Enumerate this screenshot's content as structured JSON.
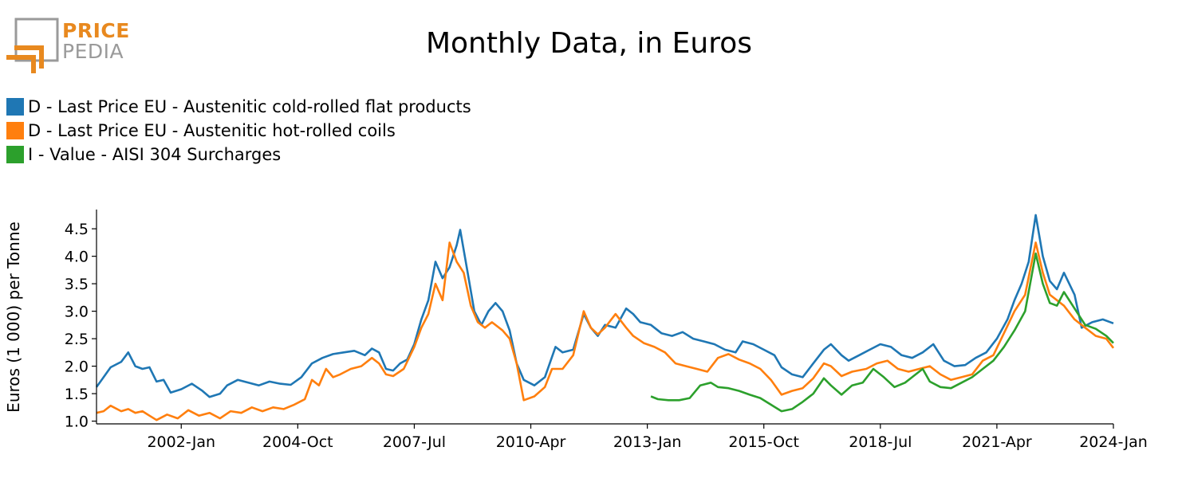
{
  "logo": {
    "line1": "PRICE",
    "line2": "PEDIA",
    "accent_color": "#e8891f",
    "gray_color": "#9a9a9a"
  },
  "chart_data": {
    "type": "line",
    "title": "Monthly Data, in Euros",
    "ylabel": "Euros (1 000) per Tonne",
    "xlabel": "",
    "ylim": [
      0.95,
      4.85
    ],
    "yticks": [
      1.0,
      1.5,
      2.0,
      2.5,
      3.0,
      3.5,
      4.0,
      4.5
    ],
    "ytick_labels": [
      "1.0",
      "1.5",
      "2.0",
      "2.5",
      "3.0",
      "3.5",
      "4.0",
      "4.5"
    ],
    "xlim": [
      "2000-01",
      "2024-01"
    ],
    "xticks": [
      "2002-01",
      "2004-10",
      "2007-07",
      "2010-04",
      "2013-01",
      "2015-10",
      "2018-07",
      "2021-04",
      "2024-01"
    ],
    "xtick_labels": [
      "2002-Jan",
      "2004-Oct",
      "2007-Jul",
      "2010-Apr",
      "2013-Jan",
      "2015-Oct",
      "2018-Jul",
      "2021-Apr",
      "2024-Jan"
    ],
    "legend_position": "top-left",
    "grid": false,
    "series": [
      {
        "name": "D - Last Price EU - Austenitic cold-rolled flat products",
        "color": "#1f77b4",
        "points": [
          [
            "2000-01",
            1.62
          ],
          [
            "2000-03",
            1.8
          ],
          [
            "2000-05",
            1.98
          ],
          [
            "2000-08",
            2.08
          ],
          [
            "2000-10",
            2.25
          ],
          [
            "2000-12",
            2.0
          ],
          [
            "2001-02",
            1.95
          ],
          [
            "2001-04",
            1.98
          ],
          [
            "2001-06",
            1.72
          ],
          [
            "2001-08",
            1.75
          ],
          [
            "2001-10",
            1.52
          ],
          [
            "2002-01",
            1.58
          ],
          [
            "2002-04",
            1.68
          ],
          [
            "2002-07",
            1.55
          ],
          [
            "2002-09",
            1.44
          ],
          [
            "2002-12",
            1.5
          ],
          [
            "2003-02",
            1.65
          ],
          [
            "2003-05",
            1.75
          ],
          [
            "2003-08",
            1.7
          ],
          [
            "2003-11",
            1.65
          ],
          [
            "2004-02",
            1.72
          ],
          [
            "2004-05",
            1.68
          ],
          [
            "2004-08",
            1.66
          ],
          [
            "2004-11",
            1.8
          ],
          [
            "2005-02",
            2.05
          ],
          [
            "2005-05",
            2.15
          ],
          [
            "2005-08",
            2.22
          ],
          [
            "2005-11",
            2.25
          ],
          [
            "2006-02",
            2.28
          ],
          [
            "2006-05",
            2.2
          ],
          [
            "2006-07",
            2.32
          ],
          [
            "2006-09",
            2.25
          ],
          [
            "2006-11",
            1.95
          ],
          [
            "2007-01",
            1.92
          ],
          [
            "2007-03",
            2.05
          ],
          [
            "2007-05",
            2.12
          ],
          [
            "2007-07",
            2.4
          ],
          [
            "2007-09",
            2.85
          ],
          [
            "2007-11",
            3.2
          ],
          [
            "2008-01",
            3.9
          ],
          [
            "2008-03",
            3.6
          ],
          [
            "2008-05",
            3.8
          ],
          [
            "2008-07",
            4.2
          ],
          [
            "2008-08",
            4.48
          ],
          [
            "2008-10",
            3.75
          ],
          [
            "2008-12",
            3.0
          ],
          [
            "2009-02",
            2.75
          ],
          [
            "2009-04",
            3.0
          ],
          [
            "2009-06",
            3.15
          ],
          [
            "2009-08",
            3.0
          ],
          [
            "2009-10",
            2.65
          ],
          [
            "2009-12",
            2.05
          ],
          [
            "2010-02",
            1.75
          ],
          [
            "2010-05",
            1.65
          ],
          [
            "2010-08",
            1.8
          ],
          [
            "2010-11",
            2.35
          ],
          [
            "2011-01",
            2.25
          ],
          [
            "2011-04",
            2.3
          ],
          [
            "2011-07",
            2.95
          ],
          [
            "2011-09",
            2.7
          ],
          [
            "2011-11",
            2.55
          ],
          [
            "2012-01",
            2.75
          ],
          [
            "2012-04",
            2.7
          ],
          [
            "2012-07",
            3.05
          ],
          [
            "2012-09",
            2.95
          ],
          [
            "2012-11",
            2.8
          ],
          [
            "2013-02",
            2.75
          ],
          [
            "2013-05",
            2.6
          ],
          [
            "2013-08",
            2.55
          ],
          [
            "2013-11",
            2.62
          ],
          [
            "2014-02",
            2.5
          ],
          [
            "2014-05",
            2.45
          ],
          [
            "2014-08",
            2.4
          ],
          [
            "2014-11",
            2.3
          ],
          [
            "2015-02",
            2.25
          ],
          [
            "2015-04",
            2.45
          ],
          [
            "2015-07",
            2.4
          ],
          [
            "2015-10",
            2.3
          ],
          [
            "2016-01",
            2.2
          ],
          [
            "2016-03",
            1.98
          ],
          [
            "2016-06",
            1.85
          ],
          [
            "2016-09",
            1.8
          ],
          [
            "2016-12",
            2.05
          ],
          [
            "2017-03",
            2.3
          ],
          [
            "2017-05",
            2.4
          ],
          [
            "2017-08",
            2.2
          ],
          [
            "2017-10",
            2.1
          ],
          [
            "2018-01",
            2.2
          ],
          [
            "2018-04",
            2.3
          ],
          [
            "2018-07",
            2.4
          ],
          [
            "2018-10",
            2.35
          ],
          [
            "2019-01",
            2.2
          ],
          [
            "2019-04",
            2.15
          ],
          [
            "2019-07",
            2.25
          ],
          [
            "2019-10",
            2.4
          ],
          [
            "2020-01",
            2.1
          ],
          [
            "2020-04",
            2.0
          ],
          [
            "2020-07",
            2.02
          ],
          [
            "2020-10",
            2.15
          ],
          [
            "2021-01",
            2.25
          ],
          [
            "2021-04",
            2.5
          ],
          [
            "2021-07",
            2.85
          ],
          [
            "2021-09",
            3.2
          ],
          [
            "2021-11",
            3.5
          ],
          [
            "2022-01",
            3.9
          ],
          [
            "2022-03",
            4.75
          ],
          [
            "2022-05",
            4.0
          ],
          [
            "2022-07",
            3.55
          ],
          [
            "2022-09",
            3.4
          ],
          [
            "2022-11",
            3.7
          ],
          [
            "2023-02",
            3.3
          ],
          [
            "2023-04",
            2.7
          ],
          [
            "2023-07",
            2.8
          ],
          [
            "2023-10",
            2.85
          ],
          [
            "2024-01",
            2.78
          ]
        ]
      },
      {
        "name": "D - Last Price EU - Austenitic hot-rolled coils",
        "color": "#ff7f0e",
        "points": [
          [
            "2000-01",
            1.15
          ],
          [
            "2000-03",
            1.18
          ],
          [
            "2000-05",
            1.28
          ],
          [
            "2000-08",
            1.18
          ],
          [
            "2000-10",
            1.22
          ],
          [
            "2000-12",
            1.15
          ],
          [
            "2001-02",
            1.18
          ],
          [
            "2001-04",
            1.1
          ],
          [
            "2001-06",
            1.02
          ],
          [
            "2001-09",
            1.12
          ],
          [
            "2001-12",
            1.05
          ],
          [
            "2002-03",
            1.2
          ],
          [
            "2002-06",
            1.1
          ],
          [
            "2002-09",
            1.15
          ],
          [
            "2002-12",
            1.05
          ],
          [
            "2003-03",
            1.18
          ],
          [
            "2003-06",
            1.15
          ],
          [
            "2003-09",
            1.25
          ],
          [
            "2003-12",
            1.18
          ],
          [
            "2004-03",
            1.25
          ],
          [
            "2004-06",
            1.22
          ],
          [
            "2004-09",
            1.3
          ],
          [
            "2004-12",
            1.4
          ],
          [
            "2005-02",
            1.75
          ],
          [
            "2005-04",
            1.65
          ],
          [
            "2005-06",
            1.95
          ],
          [
            "2005-08",
            1.8
          ],
          [
            "2005-10",
            1.85
          ],
          [
            "2006-01",
            1.95
          ],
          [
            "2006-04",
            2.0
          ],
          [
            "2006-07",
            2.15
          ],
          [
            "2006-09",
            2.05
          ],
          [
            "2006-11",
            1.85
          ],
          [
            "2007-01",
            1.82
          ],
          [
            "2007-04",
            1.95
          ],
          [
            "2007-07",
            2.35
          ],
          [
            "2007-09",
            2.7
          ],
          [
            "2007-11",
            2.95
          ],
          [
            "2008-01",
            3.5
          ],
          [
            "2008-03",
            3.2
          ],
          [
            "2008-05",
            4.25
          ],
          [
            "2008-07",
            3.9
          ],
          [
            "2008-09",
            3.7
          ],
          [
            "2008-11",
            3.1
          ],
          [
            "2009-01",
            2.8
          ],
          [
            "2009-03",
            2.7
          ],
          [
            "2009-05",
            2.8
          ],
          [
            "2009-08",
            2.65
          ],
          [
            "2009-10",
            2.5
          ],
          [
            "2009-12",
            2.05
          ],
          [
            "2010-02",
            1.38
          ],
          [
            "2010-05",
            1.45
          ],
          [
            "2010-08",
            1.62
          ],
          [
            "2010-10",
            1.95
          ],
          [
            "2011-01",
            1.95
          ],
          [
            "2011-04",
            2.2
          ],
          [
            "2011-07",
            3.0
          ],
          [
            "2011-09",
            2.7
          ],
          [
            "2011-11",
            2.58
          ],
          [
            "2012-01",
            2.7
          ],
          [
            "2012-04",
            2.95
          ],
          [
            "2012-07",
            2.7
          ],
          [
            "2012-09",
            2.55
          ],
          [
            "2012-12",
            2.42
          ],
          [
            "2013-03",
            2.35
          ],
          [
            "2013-06",
            2.25
          ],
          [
            "2013-09",
            2.05
          ],
          [
            "2013-12",
            2.0
          ],
          [
            "2014-03",
            1.95
          ],
          [
            "2014-06",
            1.9
          ],
          [
            "2014-09",
            2.15
          ],
          [
            "2014-12",
            2.22
          ],
          [
            "2015-03",
            2.12
          ],
          [
            "2015-06",
            2.05
          ],
          [
            "2015-09",
            1.95
          ],
          [
            "2015-12",
            1.75
          ],
          [
            "2016-03",
            1.48
          ],
          [
            "2016-06",
            1.55
          ],
          [
            "2016-09",
            1.6
          ],
          [
            "2016-12",
            1.78
          ],
          [
            "2017-03",
            2.05
          ],
          [
            "2017-05",
            2.0
          ],
          [
            "2017-08",
            1.82
          ],
          [
            "2017-11",
            1.9
          ],
          [
            "2018-03",
            1.95
          ],
          [
            "2018-06",
            2.05
          ],
          [
            "2018-09",
            2.1
          ],
          [
            "2018-12",
            1.95
          ],
          [
            "2019-03",
            1.9
          ],
          [
            "2019-06",
            1.95
          ],
          [
            "2019-09",
            2.0
          ],
          [
            "2019-12",
            1.85
          ],
          [
            "2020-03",
            1.75
          ],
          [
            "2020-06",
            1.8
          ],
          [
            "2020-09",
            1.85
          ],
          [
            "2020-12",
            2.1
          ],
          [
            "2021-03",
            2.2
          ],
          [
            "2021-06",
            2.6
          ],
          [
            "2021-09",
            3.0
          ],
          [
            "2021-12",
            3.3
          ],
          [
            "2022-03",
            4.25
          ],
          [
            "2022-05",
            3.7
          ],
          [
            "2022-07",
            3.3
          ],
          [
            "2022-09",
            3.2
          ],
          [
            "2022-11",
            3.1
          ],
          [
            "2023-02",
            2.85
          ],
          [
            "2023-05",
            2.7
          ],
          [
            "2023-08",
            2.55
          ],
          [
            "2023-11",
            2.5
          ],
          [
            "2024-01",
            2.33
          ]
        ]
      },
      {
        "name": "I - Value - AISI 304 Surcharges",
        "color": "#2ca02c",
        "points": [
          [
            "2013-02",
            1.45
          ],
          [
            "2013-04",
            1.4
          ],
          [
            "2013-07",
            1.38
          ],
          [
            "2013-10",
            1.38
          ],
          [
            "2014-01",
            1.42
          ],
          [
            "2014-04",
            1.65
          ],
          [
            "2014-07",
            1.7
          ],
          [
            "2014-09",
            1.62
          ],
          [
            "2014-12",
            1.6
          ],
          [
            "2015-03",
            1.55
          ],
          [
            "2015-06",
            1.48
          ],
          [
            "2015-09",
            1.42
          ],
          [
            "2015-12",
            1.3
          ],
          [
            "2016-03",
            1.18
          ],
          [
            "2016-06",
            1.22
          ],
          [
            "2016-09",
            1.35
          ],
          [
            "2016-12",
            1.5
          ],
          [
            "2017-03",
            1.78
          ],
          [
            "2017-05",
            1.65
          ],
          [
            "2017-08",
            1.48
          ],
          [
            "2017-11",
            1.65
          ],
          [
            "2018-02",
            1.7
          ],
          [
            "2018-05",
            1.95
          ],
          [
            "2018-08",
            1.8
          ],
          [
            "2018-11",
            1.62
          ],
          [
            "2019-02",
            1.7
          ],
          [
            "2019-05",
            1.85
          ],
          [
            "2019-07",
            1.95
          ],
          [
            "2019-09",
            1.72
          ],
          [
            "2019-12",
            1.62
          ],
          [
            "2020-03",
            1.6
          ],
          [
            "2020-06",
            1.7
          ],
          [
            "2020-09",
            1.8
          ],
          [
            "2020-12",
            1.95
          ],
          [
            "2021-03",
            2.1
          ],
          [
            "2021-06",
            2.35
          ],
          [
            "2021-09",
            2.65
          ],
          [
            "2021-12",
            3.0
          ],
          [
            "2022-03",
            4.05
          ],
          [
            "2022-05",
            3.5
          ],
          [
            "2022-07",
            3.15
          ],
          [
            "2022-09",
            3.1
          ],
          [
            "2022-11",
            3.35
          ],
          [
            "2023-02",
            3.05
          ],
          [
            "2023-05",
            2.75
          ],
          [
            "2023-08",
            2.68
          ],
          [
            "2023-11",
            2.55
          ],
          [
            "2024-01",
            2.42
          ]
        ]
      }
    ]
  }
}
